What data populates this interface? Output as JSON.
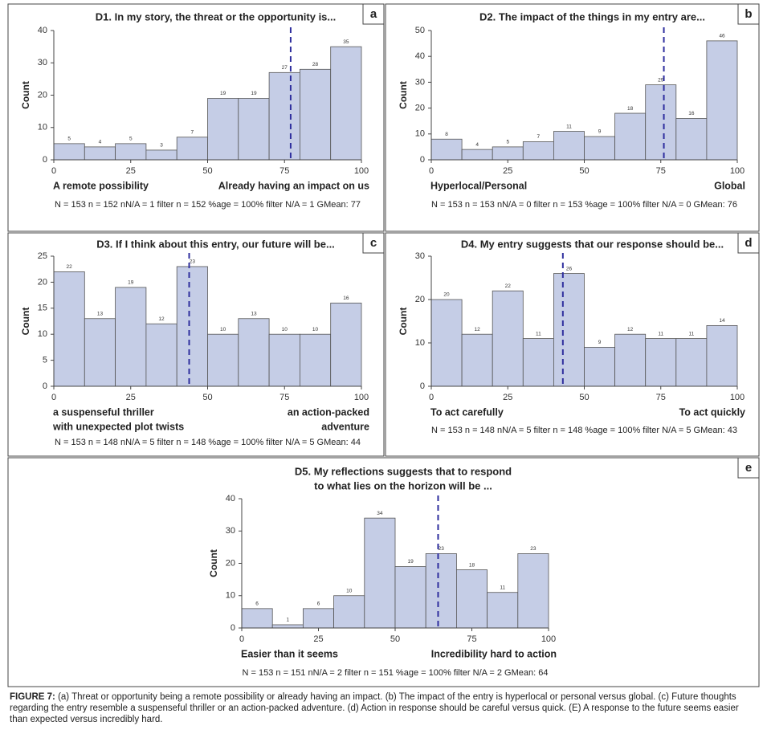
{
  "chart_data": [
    {
      "type": "histogram",
      "panel": "a",
      "title": [
        "D1. In my story, the threat or the opportunity is..."
      ],
      "bins": [
        0,
        10,
        20,
        30,
        40,
        50,
        60,
        70,
        80,
        90,
        100
      ],
      "values": [
        5,
        4,
        5,
        3,
        7,
        19,
        19,
        27,
        28,
        35
      ],
      "color": "#c5cde6",
      "xlim": [
        0,
        100
      ],
      "xticks": [
        0,
        25,
        50,
        75,
        100
      ],
      "ylim": [
        0,
        40
      ],
      "yticks": [
        0,
        10,
        20,
        30,
        40
      ],
      "y_label": "Count",
      "left_label": [
        "A remote possibility"
      ],
      "right_label": [
        "Already having an impact on us"
      ],
      "gmean": 77,
      "stats": "N = 153 n = 152 nN/A = 1 filter n = 152 %age = 100% filter N/A = 1 GMean: 77"
    },
    {
      "type": "histogram",
      "panel": "b",
      "title": [
        "D2. The impact of the things in my entry are..."
      ],
      "bins": [
        0,
        10,
        20,
        30,
        40,
        50,
        60,
        70,
        80,
        90,
        100
      ],
      "values": [
        8,
        4,
        5,
        7,
        11,
        9,
        18,
        29,
        16,
        46
      ],
      "color": "#c5cde6",
      "xlim": [
        0,
        100
      ],
      "xticks": [
        0,
        25,
        50,
        75,
        100
      ],
      "ylim": [
        0,
        50
      ],
      "yticks": [
        0,
        10,
        20,
        30,
        40,
        50
      ],
      "y_label": "Count",
      "left_label": [
        "Hyperlocal/Personal"
      ],
      "right_label": [
        "Global"
      ],
      "gmean": 76,
      "stats": "N = 153 n = 153 nN/A = 0 filter n = 153 %age = 100% filter N/A = 0 GMean: 76"
    },
    {
      "type": "histogram",
      "panel": "c",
      "title": [
        "D3. If I think about this entry, our future will be..."
      ],
      "bins": [
        0,
        10,
        20,
        30,
        40,
        50,
        60,
        70,
        80,
        90,
        100
      ],
      "values": [
        22,
        13,
        19,
        12,
        23,
        10,
        13,
        10,
        10,
        16
      ],
      "color": "#c5cde6",
      "xlim": [
        0,
        100
      ],
      "xticks": [
        0,
        25,
        50,
        75,
        100
      ],
      "ylim": [
        0,
        25
      ],
      "yticks": [
        0,
        5,
        10,
        15,
        20,
        25
      ],
      "y_label": "Count",
      "left_label": [
        "a suspenseful thriller",
        "with unexpected plot twists"
      ],
      "right_label": [
        "an action-packed",
        "adventure"
      ],
      "gmean": 44,
      "stats": "N = 153 n = 148 nN/A = 5 filter n = 148 %age = 100% filter N/A = 5 GMean: 44"
    },
    {
      "type": "histogram",
      "panel": "d",
      "title": [
        "D4. My entry suggests that our response should be..."
      ],
      "bins": [
        0,
        10,
        20,
        30,
        40,
        50,
        60,
        70,
        80,
        90,
        100
      ],
      "values": [
        20,
        12,
        22,
        11,
        26,
        9,
        12,
        11,
        11,
        14
      ],
      "color": "#c5cde6",
      "xlim": [
        0,
        100
      ],
      "xticks": [
        0,
        25,
        50,
        75,
        100
      ],
      "ylim": [
        0,
        30
      ],
      "yticks": [
        0,
        10,
        20,
        30
      ],
      "y_label": "Count",
      "left_label": [
        "To act carefully"
      ],
      "right_label": [
        "To act quickly"
      ],
      "gmean": 43,
      "stats": "N = 153 n = 148 nN/A = 5 filter n = 148 %age = 100% filter N/A = 5 GMean: 43"
    },
    {
      "type": "histogram",
      "panel": "e",
      "title": [
        "D5. My reflections suggests that to respond",
        "to what lies on the horizon will be ..."
      ],
      "bins": [
        0,
        10,
        20,
        30,
        40,
        50,
        60,
        70,
        80,
        90,
        100
      ],
      "values": [
        6,
        1,
        6,
        10,
        34,
        19,
        23,
        18,
        11,
        23
      ],
      "color": "#c5cde6",
      "xlim": [
        0,
        100
      ],
      "xticks": [
        0,
        25,
        50,
        75,
        100
      ],
      "ylim": [
        0,
        40
      ],
      "yticks": [
        0,
        10,
        20,
        30,
        40
      ],
      "y_label": "Count",
      "left_label": [
        "Easier than it seems"
      ],
      "right_label": [
        "Incredibility hard to action"
      ],
      "gmean": 64,
      "stats": "N = 153 n = 151 nN/A = 2 filter n = 151 %age = 100% filter N/A = 2 GMean: 64"
    }
  ],
  "caption": {
    "label": "FIGURE 7:",
    "text": "(a) Threat or opportunity being a remote possibility or already having an impact. (b) The impact of the entry is hyperlocal or personal versus global. (c) Future thoughts regarding the entry resemble a suspenseful thriller or an action-packed adventure. (d) Action in response should be careful versus quick. (E) A response to the future seems easier than expected versus incredibly hard."
  }
}
